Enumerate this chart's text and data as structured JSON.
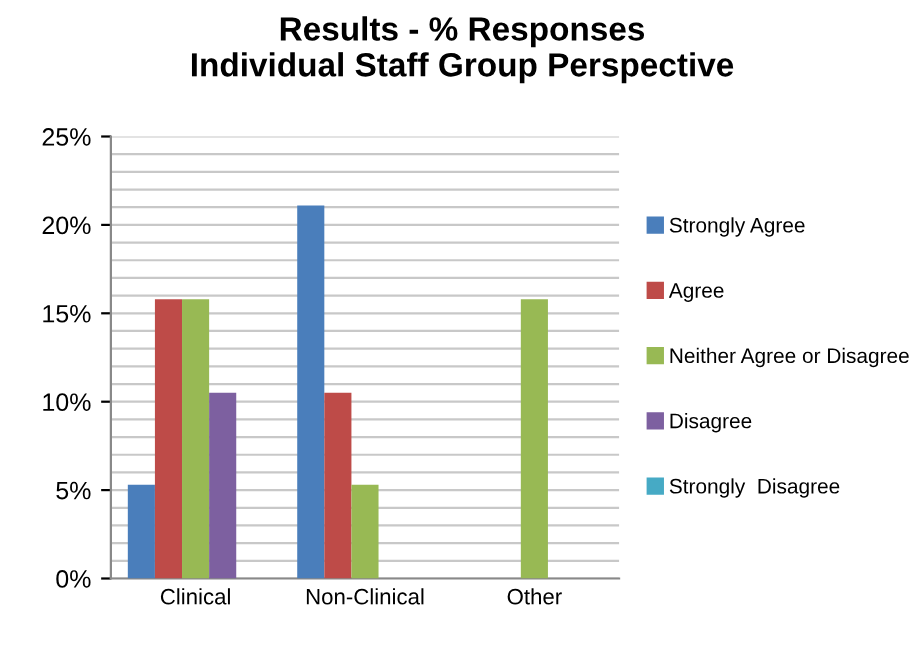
{
  "chart_data": {
    "type": "bar",
    "title": "Results - % Responses\nIndividual Staff Group Perspective",
    "categories": [
      "Clinical",
      "Non-Clinical",
      "Other"
    ],
    "series": [
      {
        "name": "Strongly Agree",
        "color": "#4a7ebb",
        "values": [
          5.3,
          21.1,
          0
        ]
      },
      {
        "name": "Agree",
        "color": "#be4b48",
        "values": [
          15.8,
          10.5,
          0
        ]
      },
      {
        "name": "Neither Agree or Disagree",
        "color": "#98b954",
        "values": [
          15.8,
          5.3,
          15.8
        ]
      },
      {
        "name": "Disagree",
        "color": "#7d60a0",
        "values": [
          10.5,
          0,
          0
        ]
      },
      {
        "name": "Strongly  Disagree",
        "color": "#46aac5",
        "values": [
          0,
          0,
          0
        ]
      }
    ],
    "ylim": [
      0,
      25
    ],
    "yticks": [
      {
        "value": 0,
        "label": "0%"
      },
      {
        "value": 1,
        "label": null
      },
      {
        "value": 2,
        "label": null
      },
      {
        "value": 3,
        "label": null
      },
      {
        "value": 4,
        "label": null
      },
      {
        "value": 5,
        "label": "5%"
      },
      {
        "value": 6,
        "label": null
      },
      {
        "value": 7,
        "label": null
      },
      {
        "value": 8,
        "label": null
      },
      {
        "value": 9,
        "label": null
      },
      {
        "value": 10,
        "label": "10%"
      },
      {
        "value": 11,
        "label": null
      },
      {
        "value": 12,
        "label": null
      },
      {
        "value": 13,
        "label": null
      },
      {
        "value": 14,
        "label": null
      },
      {
        "value": 15,
        "label": "15%"
      },
      {
        "value": 16,
        "label": null
      },
      {
        "value": 17,
        "label": null
      },
      {
        "value": 18,
        "label": null
      },
      {
        "value": 19,
        "label": null
      },
      {
        "value": 20,
        "label": "20%"
      },
      {
        "value": 21,
        "label": null
      },
      {
        "value": 22,
        "label": null
      },
      {
        "value": 23,
        "label": null
      },
      {
        "value": 24,
        "label": null
      },
      {
        "value": 25,
        "label": "25%"
      }
    ],
    "grid": "y",
    "legend": "right"
  }
}
